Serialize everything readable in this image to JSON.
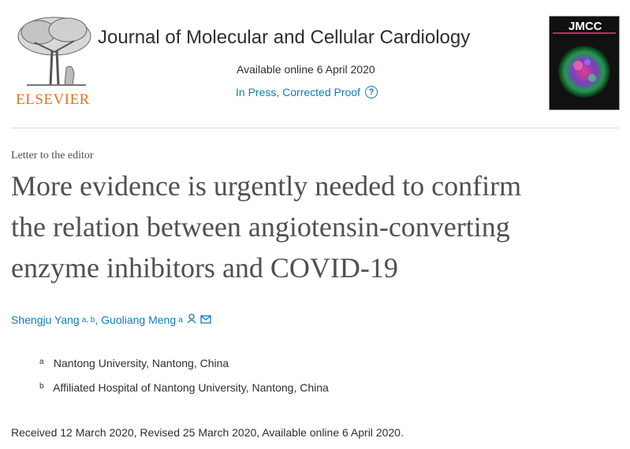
{
  "header": {
    "publisher_name": "ELSEVIER",
    "journal_title": "Journal of Molecular and Cellular Cardiology",
    "available_online": "Available online 6 April 2020",
    "status": "In Press, Corrected Proof",
    "help_icon": "?",
    "cover_abbrev": "JMCC"
  },
  "article": {
    "type": "Letter to the editor",
    "title_lines": [
      "More evidence is urgently needed to confirm",
      "the relation between angiotensin-converting",
      "enzyme inhibitors and COVID-19"
    ],
    "authors": [
      {
        "name": "Shengju Yang",
        "affil": "a, b"
      },
      {
        "name": "Guoliang Meng",
        "affil": "a"
      }
    ],
    "affiliations": [
      {
        "mark": "a",
        "text": "Nantong University, Nantong, China"
      },
      {
        "mark": "b",
        "text": "Affiliated Hospital of Nantong University, Nantong, China"
      }
    ],
    "history": "Received 12 March 2020, Revised 25 March 2020, Available online 6 April 2020."
  },
  "colors": {
    "link": "#0c7dbb",
    "elsevier_orange": "#e9711c",
    "title_gray": "#505050"
  },
  "icons": [
    "elsevier-tree-logo",
    "help-circle-icon",
    "person-icon",
    "envelope-icon",
    "journal-cover-image"
  ]
}
